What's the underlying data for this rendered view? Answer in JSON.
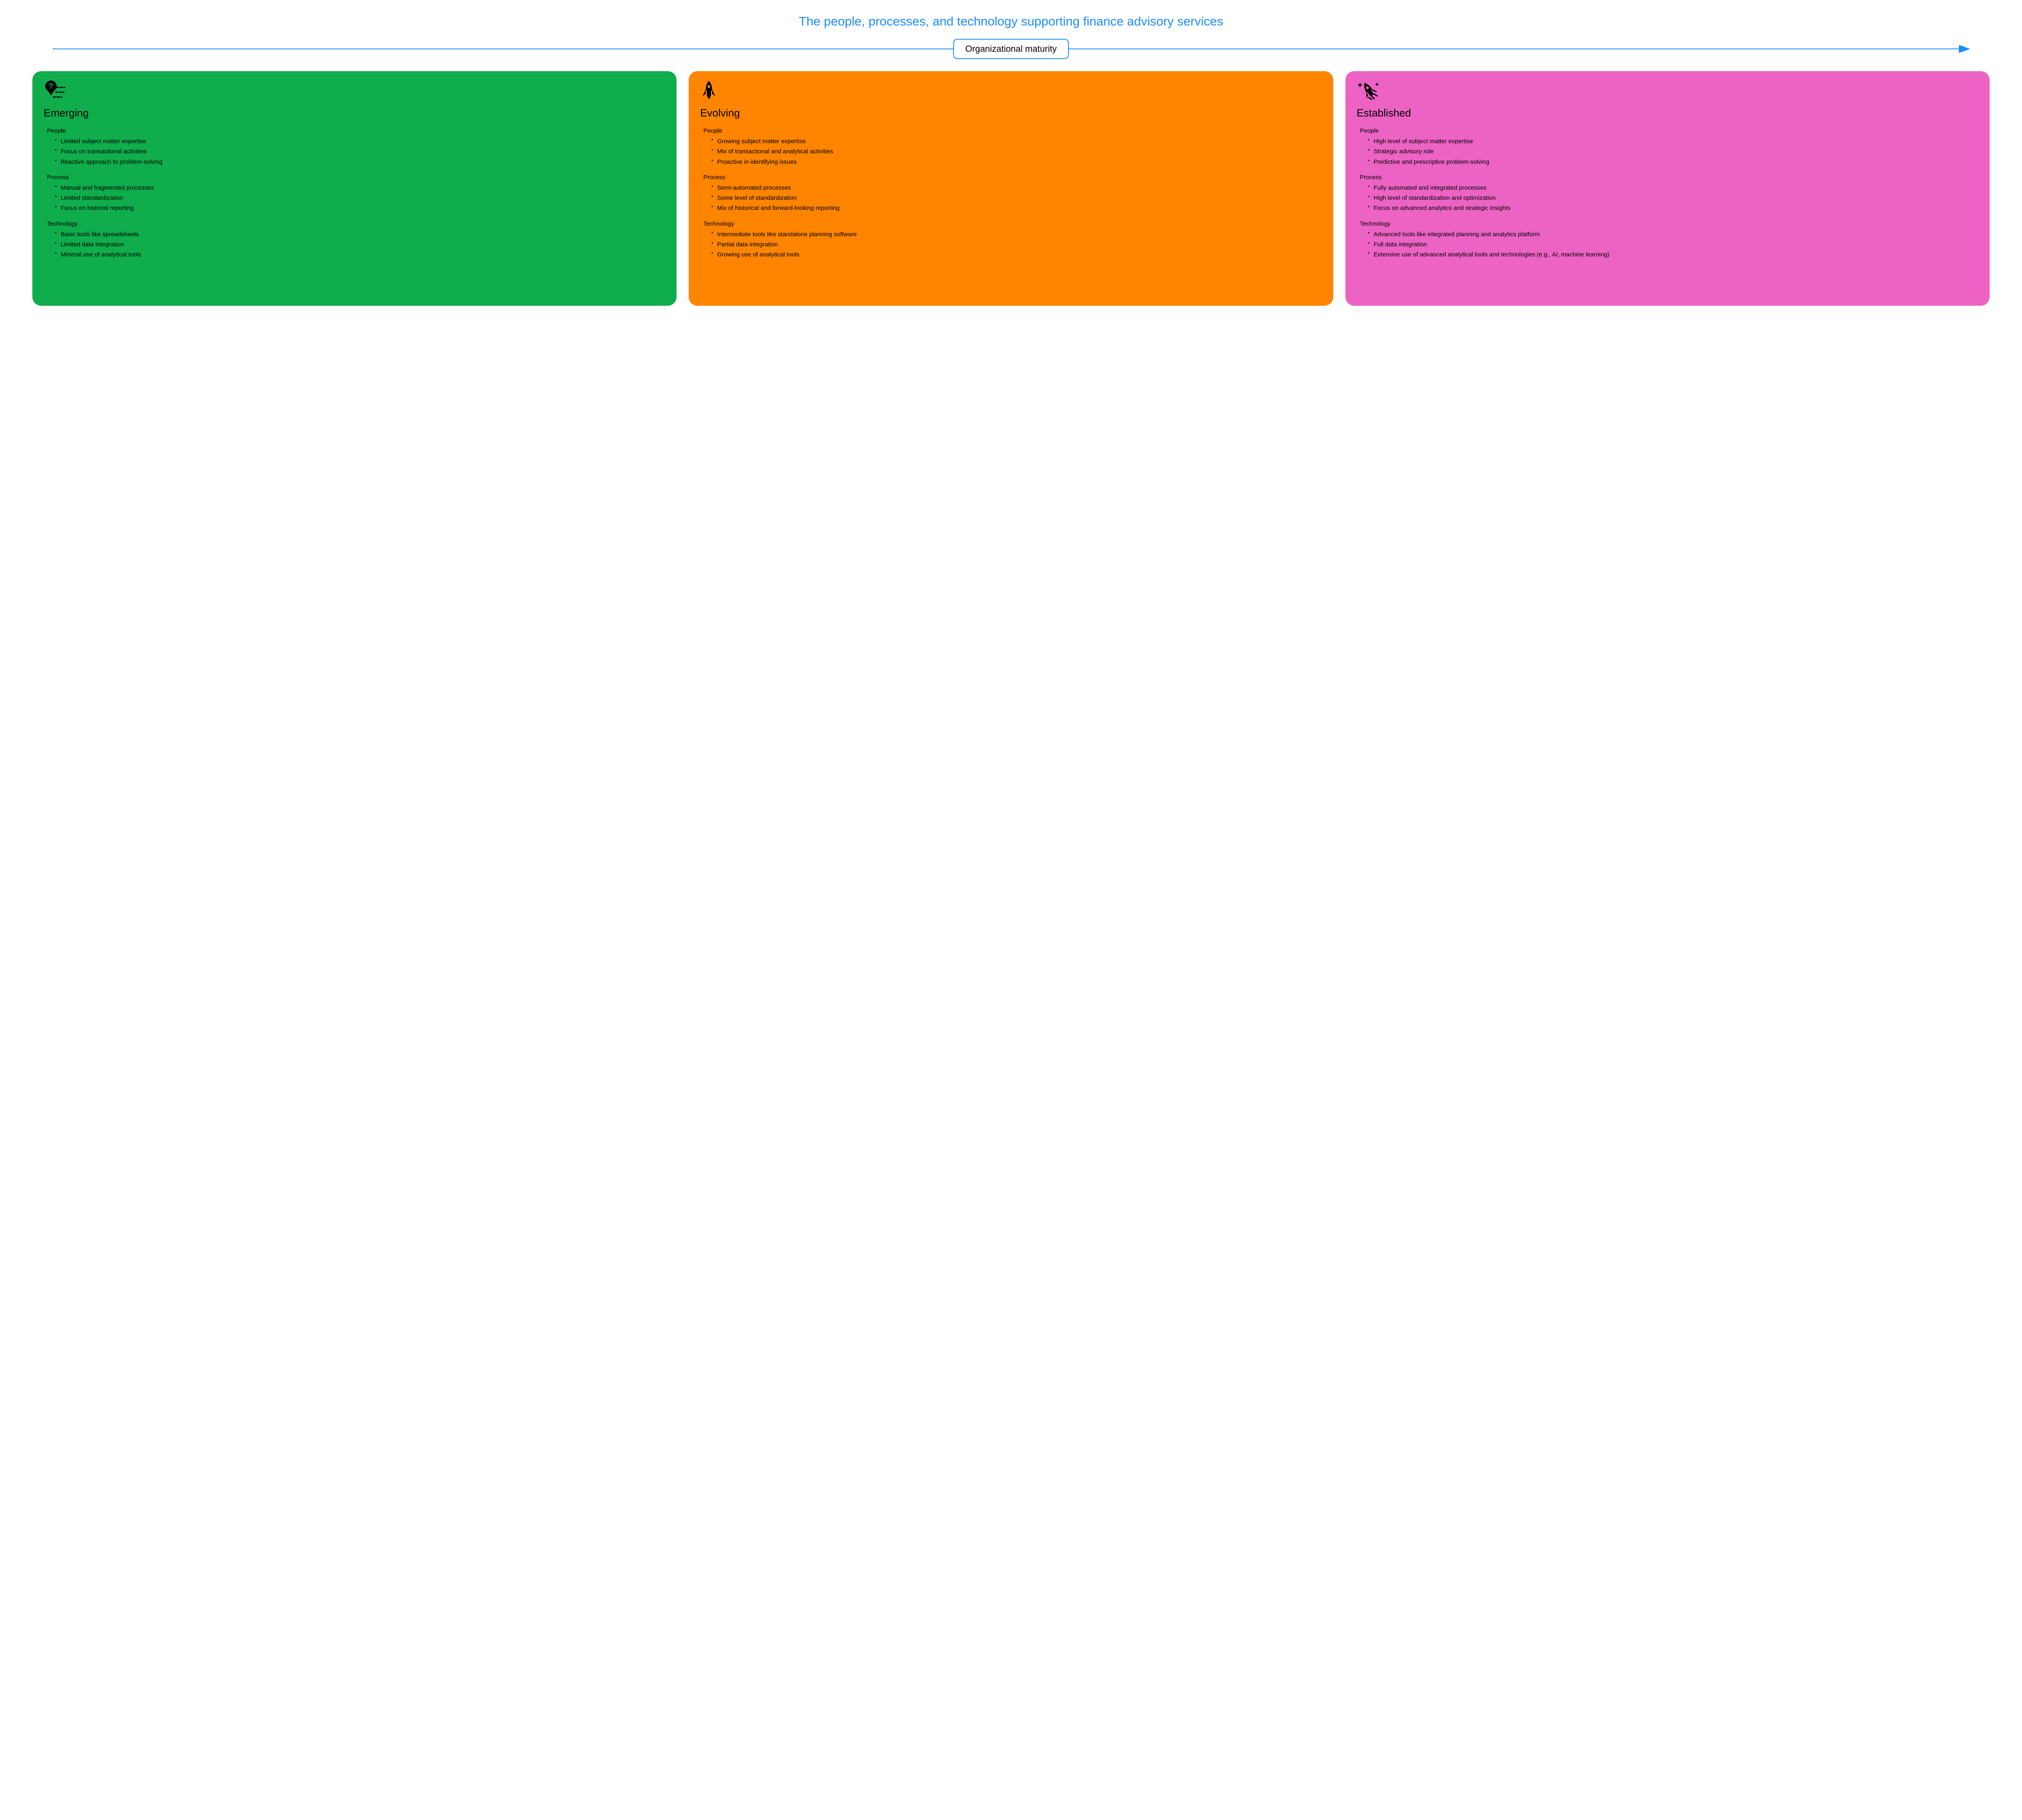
{
  "title": "The people, processes, and technology supporting finance advisory services",
  "title_color": "#1a8cff",
  "arrow": {
    "label": "Organizational maturity",
    "line_color": "#1a8cff",
    "border_color": "#1a8cff"
  },
  "cards": [
    {
      "id": "emerging",
      "title": "Emerging",
      "bg": "#0fad4b",
      "icon": "question-map",
      "sections": [
        {
          "heading": "People",
          "items": [
            "Limited subject matter expertise",
            "Focus on transactional activities",
            "Reactive approach to problem-solving"
          ]
        },
        {
          "heading": "Process",
          "items": [
            "Manual and fragmented processes",
            "Limited standardization",
            "Focus on historial reporting"
          ]
        },
        {
          "heading": "Technology",
          "items": [
            "Basic tools like spreadsheets",
            "Limited data integration",
            "Minimal use of analytical tools"
          ]
        }
      ]
    },
    {
      "id": "evolving",
      "title": "Evolving",
      "bg": "#ff8400",
      "icon": "rocket",
      "sections": [
        {
          "heading": "People",
          "items": [
            "Growing subject matter expertise",
            "Mix of transactional and analytical activities",
            "Proactive in identifying issues"
          ]
        },
        {
          "heading": "Process",
          "items": [
            "Semi-automated processes",
            "Some level of standardization",
            "Mix of historical and forward-looking reporting"
          ]
        },
        {
          "heading": "Technology",
          "items": [
            "Intermediate tools like standalone planning software",
            "Partial data integration",
            "Growing use of analytical tools"
          ]
        }
      ]
    },
    {
      "id": "established",
      "title": "Established",
      "bg": "#ec63c4",
      "icon": "rocket-sparkle",
      "sections": [
        {
          "heading": "People",
          "items": [
            "High level of subject matter expertise",
            "Strategic advisory role",
            "Predictive and prescriptive problem-solving"
          ]
        },
        {
          "heading": "Process",
          "items": [
            "Fully automated and integrated processes",
            "High level of standardization and optimization",
            "Focus on advanced analytics and strategic insights"
          ]
        },
        {
          "heading": "Technology",
          "items": [
            "Advanced tools like integrated planning and analytics platform",
            "Full data integration",
            "Extensive use of advanced analytical tools and technologies (e.g., AI, machine learning)"
          ]
        }
      ]
    }
  ]
}
